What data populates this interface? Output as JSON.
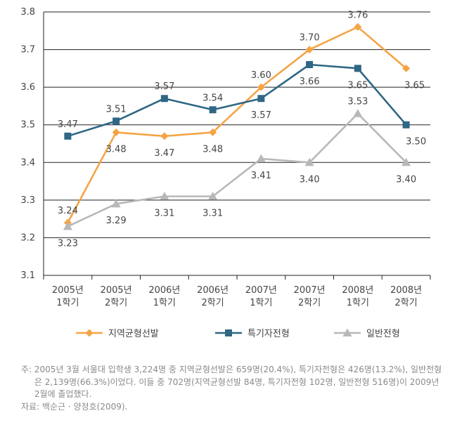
{
  "chart_data": {
    "type": "line",
    "categories": [
      [
        "2005년",
        "1학기"
      ],
      [
        "2005년",
        "2학기"
      ],
      [
        "2006년",
        "1학기"
      ],
      [
        "2006년",
        "2학기"
      ],
      [
        "2007년",
        "1학기"
      ],
      [
        "2007년",
        "2학기"
      ],
      [
        "2008년",
        "1학기"
      ],
      [
        "2008년",
        "2학기"
      ]
    ],
    "ylim": [
      3.1,
      3.8
    ],
    "yticks": [
      "3.1",
      "3.2",
      "3.3",
      "3.4",
      "3.5",
      "3.6",
      "3.7",
      "3.8"
    ],
    "grid": true,
    "legend_position": "bottom",
    "series": [
      {
        "name": "지역균형선발",
        "marker": "diamond",
        "color": "#f5a445",
        "values": [
          3.24,
          3.48,
          3.47,
          3.48,
          3.6,
          3.7,
          3.76,
          3.65
        ],
        "labels": [
          "3.24",
          "3.48",
          "3.47",
          "3.48",
          "3.60",
          "3.70",
          "3.76",
          "3.65"
        ]
      },
      {
        "name": "특기자전형",
        "marker": "square",
        "color": "#2f6784",
        "values": [
          3.47,
          3.51,
          3.57,
          3.54,
          3.57,
          3.66,
          3.65,
          3.5
        ],
        "labels": [
          "3.47",
          "3.51",
          "3.57",
          "3.54",
          "3.57",
          "3.66",
          "3.65",
          "3.50"
        ]
      },
      {
        "name": "일반전형",
        "marker": "triangle",
        "color": "#b8b8b8",
        "values": [
          3.23,
          3.29,
          3.31,
          3.31,
          3.41,
          3.4,
          3.53,
          3.4
        ],
        "labels": [
          "3.23",
          "3.29",
          "3.31",
          "3.31",
          "3.41",
          "3.40",
          "3.53",
          "3.40"
        ]
      }
    ]
  },
  "notes": {
    "note_label": "주: ",
    "note_text": "2005년 3월 서울대 입학생 3,224명 중 지역균형선발은 659명(20.4%), 특기자전형은 426명(13.2%), 일반전형은 2,139명(66.3%)이었다. 이들 중 702명(지역균형선발 84명, 특기자전형 102명, 일반전형 516명)이 2009년 2월에 졸업했다.",
    "source_label": "자료: ",
    "source_text": "백순근 · 양정호(2009)."
  }
}
